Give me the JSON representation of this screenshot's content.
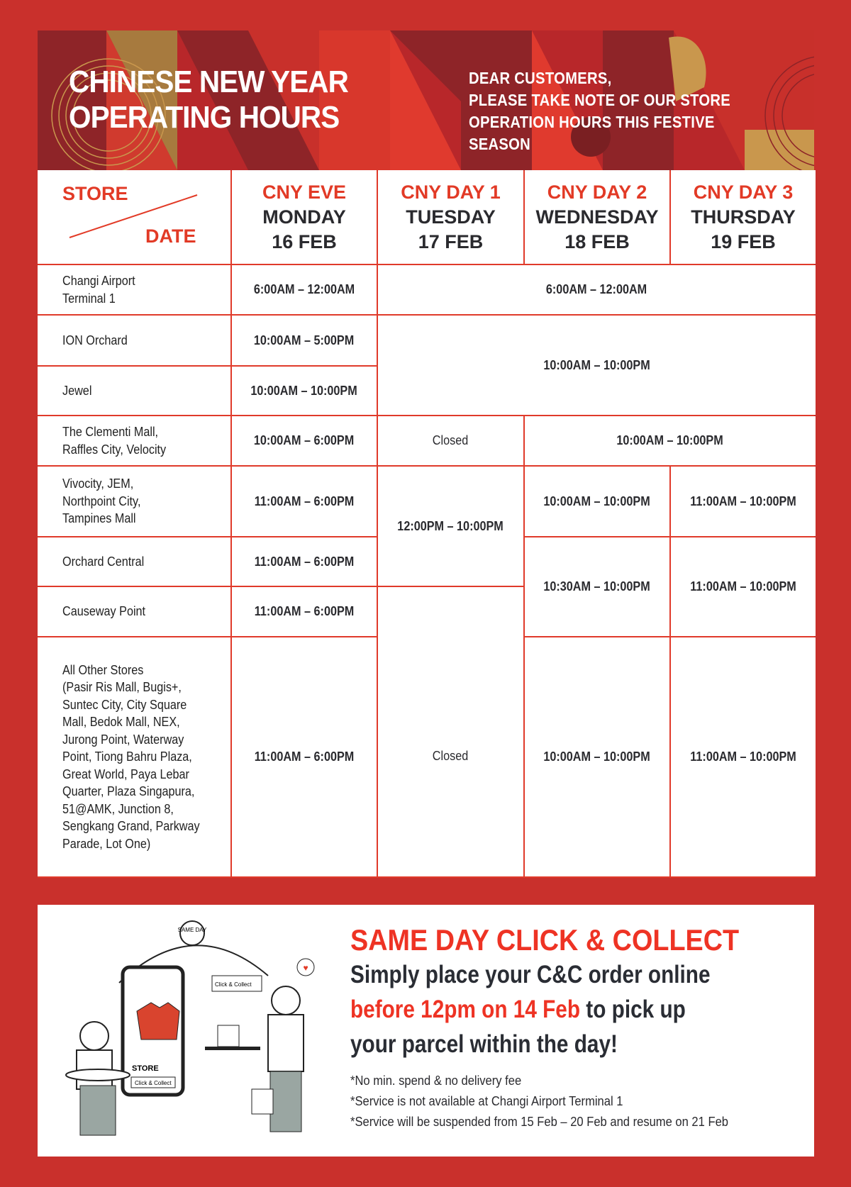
{
  "banner": {
    "title_line1": "CHINESE NEW YEAR",
    "title_line2": "OPERATING HOURS",
    "note_line1": "DEAR CUSTOMERS,",
    "note_line2": "PLEASE TAKE NOTE OF OUR STORE",
    "note_line3": "OPERATION HOURS THIS FESTIVE SEASON"
  },
  "table": {
    "corner": {
      "store": "STORE",
      "date": "DATE"
    },
    "columns": [
      {
        "label": "CNY EVE",
        "day": "MONDAY",
        "date": "16 FEB"
      },
      {
        "label": "CNY DAY 1",
        "day": "TUESDAY",
        "date": "17 FEB"
      },
      {
        "label": "CNY DAY 2",
        "day": "WEDNESDAY",
        "date": "18 FEB"
      },
      {
        "label": "CNY DAY 3",
        "day": "THURSDAY",
        "date": "19 FEB"
      }
    ],
    "stores": [
      "Changi Airport\nTerminal 1",
      "ION Orchard",
      "Jewel",
      "The Clementi Mall,\nRaffles City, Velocity",
      "Vivocity, JEM,\nNorthpoint City,\nTampines Mall",
      "Orchard Central",
      "Causeway Point",
      "All Other Stores\n(Pasir Ris Mall, Bugis+,\nSuntec City, City Square\nMall, Bedok Mall, NEX,\nJurong Point, Waterway\nPoint, Tiong Bahru Plaza,\nGreat World, Paya Lebar\nQuarter, Plaza Singapura,\n51@AMK, Junction 8,\nSengkang Grand, Parkway\nParade, Lot One)"
    ],
    "hours": {
      "changi_eve": "6:00AM – 12:00AM",
      "changi_d1_d3": "6:00AM – 12:00AM",
      "ion_eve": "10:00AM – 5:00PM",
      "ion_jewel_d1_d3": "10:00AM – 10:00PM",
      "jewel_eve": "10:00AM – 10:00PM",
      "clementi_eve": "10:00AM – 6:00PM",
      "clementi_d1": "Closed",
      "clementi_d2_d3": "10:00AM – 10:00PM",
      "vivo_eve": "11:00AM – 6:00PM",
      "vivo_orchard_d1": "12:00PM – 10:00PM",
      "vivo_d2": "10:00AM – 10:00PM",
      "vivo_d3": "11:00AM – 10:00PM",
      "orchard_eve": "11:00AM – 6:00PM",
      "orchard_causeway_d2": "10:30AM – 10:00PM",
      "orchard_causeway_d3": "11:00AM – 10:00PM",
      "causeway_eve": "11:00AM – 6:00PM",
      "causeway_others_d1": "Closed",
      "others_eve": "11:00AM – 6:00PM",
      "others_d2": "10:00AM – 10:00PM",
      "others_d3": "11:00AM – 10:00PM"
    }
  },
  "click_collect": {
    "title": "SAME DAY CLICK & COLLECT",
    "line1": "Simply place your C&C order online",
    "line2_highlight": "before 12pm on 14 Feb",
    "line2_rest": " to pick up",
    "line3": "your parcel within the day!",
    "footnotes": [
      "*No min. spend & no delivery fee",
      "*Service is not available at Changi Airport Terminal 1",
      "*Service will be suspended from 15 Feb – 20 Feb and resume on 21 Feb"
    ],
    "illustration": {
      "timer": "SAME DAY",
      "sign": "Click & Collect",
      "phone_store": "STORE",
      "phone_button": "Click & Collect"
    }
  },
  "colors": {
    "background": "#c9302c",
    "accent": "#ee3324",
    "gold": "#c9974d",
    "dark_red": "#8e2428"
  }
}
